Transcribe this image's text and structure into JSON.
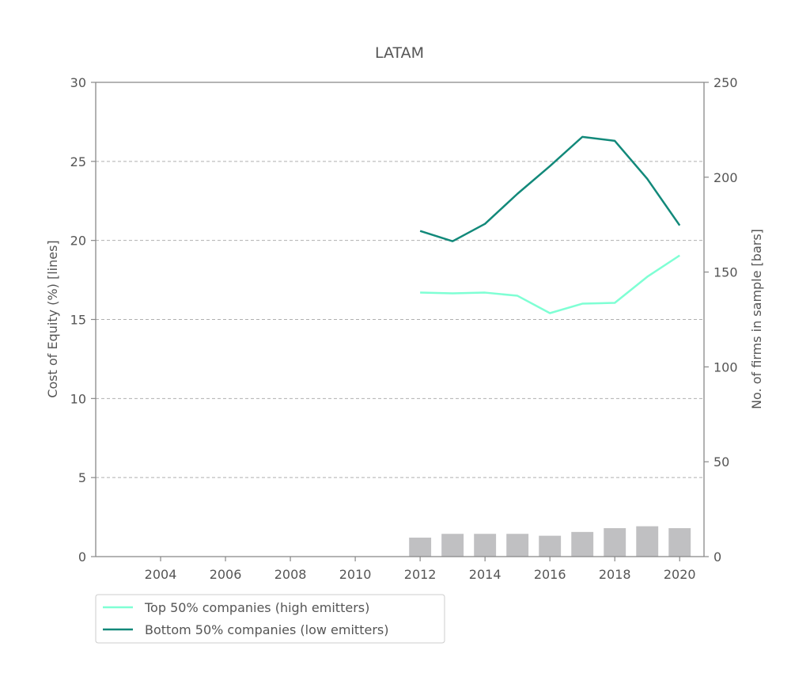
{
  "chart_data": {
    "type": "line",
    "title": "LATAM",
    "ylabel": "Cost of Equity (%) [lines]",
    "y2label": "No. of firms in sample [bars]",
    "xlabel": "",
    "xlim": [
      2002,
      2020.75
    ],
    "ylim": [
      0,
      30
    ],
    "y2lim": [
      0,
      250
    ],
    "x_ticks": [
      2004,
      2006,
      2008,
      2010,
      2012,
      2014,
      2016,
      2018,
      2020
    ],
    "y_ticks": [
      0,
      5,
      10,
      15,
      20,
      25,
      30
    ],
    "y2_ticks": [
      0,
      50,
      100,
      150,
      200,
      250
    ],
    "grid": "horizontal dashed",
    "legend_position": "below-left",
    "series": [
      {
        "name": "Top 50% companies (high emitters)",
        "color": "#7fffd4",
        "x": [
          2012,
          2013,
          2014,
          2015,
          2016,
          2017,
          2018,
          2019,
          2020
        ],
        "values": [
          16.7,
          16.65,
          16.7,
          16.5,
          15.4,
          16.0,
          16.05,
          17.7,
          19.05
        ]
      },
      {
        "name": "Bottom 50% companies (low emitters)",
        "color": "#12897a",
        "x": [
          2012,
          2013,
          2014,
          2015,
          2016,
          2017,
          2018,
          2019,
          2020
        ],
        "values": [
          20.6,
          19.95,
          21.05,
          22.95,
          24.7,
          26.55,
          26.3,
          23.9,
          20.95
        ]
      }
    ],
    "bars": {
      "axis": "right",
      "color": "#c0c0c2",
      "x": [
        2012,
        2013,
        2014,
        2015,
        2016,
        2017,
        2018,
        2019,
        2020
      ],
      "values": [
        10,
        12,
        12,
        12,
        11,
        13,
        15,
        16,
        15
      ]
    }
  }
}
